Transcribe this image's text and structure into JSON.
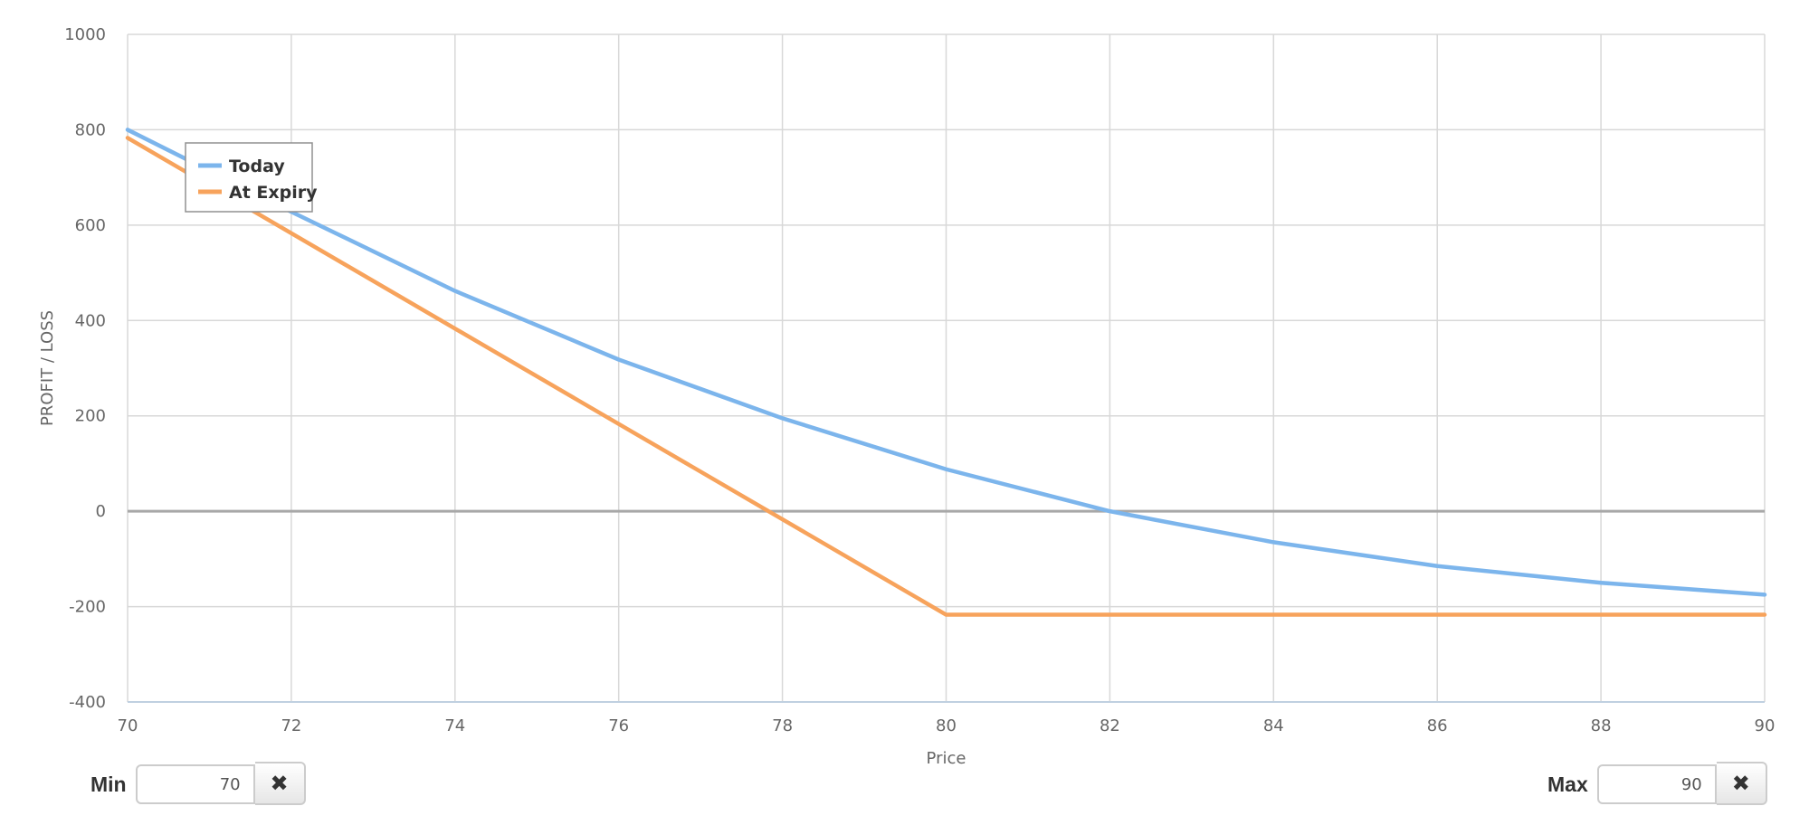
{
  "chart_data": {
    "type": "line",
    "title": "",
    "xlabel": "Price",
    "ylabel": "PROFIT / LOSS",
    "xlim": [
      70,
      90
    ],
    "ylim": [
      -400,
      1000
    ],
    "x_ticks": [
      70,
      72,
      74,
      76,
      78,
      80,
      82,
      84,
      86,
      88,
      90
    ],
    "y_ticks": [
      -400,
      -200,
      0,
      200,
      400,
      600,
      800,
      1000
    ],
    "x_tick_labels": [
      "70",
      "72",
      "74",
      "76",
      "78",
      "80",
      "82",
      "84",
      "86",
      "88",
      "90"
    ],
    "y_tick_labels": [
      "-400",
      "-200",
      "0",
      "200",
      "400",
      "600",
      "800",
      "1000"
    ],
    "grid": true,
    "zero_line": true,
    "legend": {
      "position": "top-left"
    },
    "series": [
      {
        "name": "Today",
        "color": "#7cb5ec",
        "x": [
          70,
          72,
          74,
          76,
          78,
          80,
          82,
          84,
          86,
          88,
          90
        ],
        "y": [
          800,
          628,
          462,
          318,
          195,
          88,
          0,
          -65,
          -115,
          -150,
          -175
        ]
      },
      {
        "name": "At Expiry",
        "color": "#f7a35c",
        "x": [
          70,
          80,
          90
        ],
        "y": [
          783,
          -217,
          -217
        ]
      }
    ]
  },
  "controls": {
    "min_label": "Min",
    "min_value": "70",
    "max_label": "Max",
    "max_value": "90",
    "clear_icon": "✖"
  }
}
